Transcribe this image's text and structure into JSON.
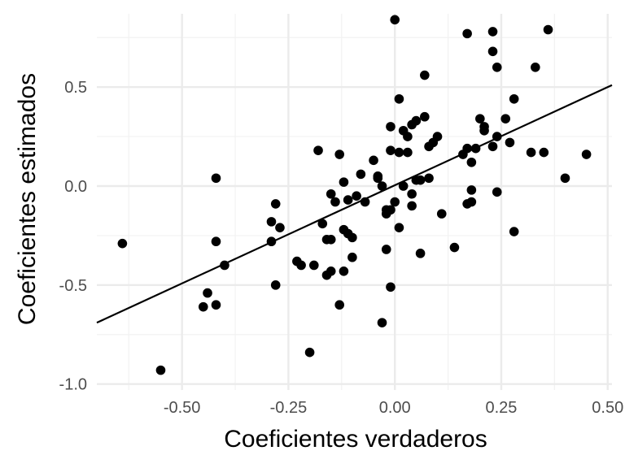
{
  "chart_data": {
    "type": "scatter",
    "title": "",
    "xlabel": "Coeficientes verdaderos",
    "ylabel": "Coeficientes estimados",
    "xlim": [
      -0.7,
      0.51
    ],
    "ylim": [
      -1.03,
      0.87
    ],
    "grid": true,
    "x_ticks": [
      -0.5,
      -0.25,
      0.0,
      0.25,
      0.5
    ],
    "x_tick_labels": [
      "-0.50",
      "-0.25",
      "0.00",
      "0.25",
      "0.50"
    ],
    "y_ticks": [
      -1.0,
      -0.5,
      0.0,
      0.5
    ],
    "y_tick_labels": [
      "-1.0",
      "-0.5",
      "0.0",
      "0.5"
    ],
    "fit_line": {
      "x": [
        -0.7,
        0.51
      ],
      "y": [
        -0.69,
        0.51
      ]
    },
    "points": {
      "x": [
        -0.64,
        -0.55,
        -0.45,
        -0.44,
        -0.42,
        -0.42,
        -0.42,
        -0.4,
        -0.29,
        -0.29,
        -0.28,
        -0.28,
        -0.27,
        -0.23,
        -0.22,
        -0.2,
        -0.19,
        -0.18,
        -0.17,
        -0.16,
        -0.16,
        -0.15,
        -0.15,
        -0.15,
        -0.14,
        -0.13,
        -0.13,
        -0.12,
        -0.12,
        -0.12,
        -0.11,
        -0.11,
        -0.1,
        -0.1,
        -0.09,
        -0.08,
        -0.07,
        -0.05,
        -0.04,
        -0.04,
        -0.03,
        -0.03,
        -0.02,
        -0.02,
        -0.02,
        -0.01,
        -0.01,
        -0.01,
        -0.01,
        0.0,
        0.0,
        0.01,
        0.01,
        0.01,
        0.02,
        0.02,
        0.03,
        0.03,
        0.04,
        0.04,
        0.04,
        0.05,
        0.05,
        0.06,
        0.06,
        0.07,
        0.07,
        0.08,
        0.08,
        0.09,
        0.1,
        0.11,
        0.14,
        0.16,
        0.17,
        0.17,
        0.17,
        0.18,
        0.18,
        0.18,
        0.19,
        0.2,
        0.21,
        0.21,
        0.23,
        0.23,
        0.23,
        0.24,
        0.24,
        0.24,
        0.26,
        0.27,
        0.28,
        0.28,
        0.32,
        0.33,
        0.35,
        0.36,
        0.4,
        0.45
      ],
      "y": [
        -0.29,
        -0.93,
        -0.61,
        -0.54,
        -0.6,
        -0.28,
        0.04,
        -0.4,
        -0.18,
        -0.28,
        -0.09,
        -0.5,
        -0.21,
        -0.38,
        -0.4,
        -0.84,
        -0.4,
        0.18,
        -0.19,
        -0.27,
        -0.45,
        -0.27,
        -0.43,
        -0.04,
        -0.08,
        -0.6,
        0.16,
        -0.43,
        -0.22,
        0.02,
        -0.07,
        -0.24,
        -0.36,
        -0.26,
        -0.05,
        0.06,
        -0.08,
        0.13,
        0.05,
        0.04,
        -0.69,
        0.0,
        -0.32,
        -0.12,
        -0.14,
        0.18,
        0.3,
        -0.51,
        -0.12,
        0.84,
        -0.08,
        0.17,
        -0.21,
        0.44,
        0.0,
        0.28,
        0.25,
        0.17,
        -0.1,
        -0.04,
        0.31,
        0.33,
        0.03,
        0.03,
        -0.34,
        0.35,
        0.56,
        0.2,
        0.04,
        0.22,
        0.25,
        -0.14,
        -0.31,
        0.16,
        0.77,
        0.19,
        -0.09,
        -0.08,
        0.12,
        -0.02,
        0.19,
        0.34,
        0.3,
        0.28,
        0.2,
        0.68,
        0.78,
        -0.03,
        0.25,
        0.6,
        0.34,
        0.22,
        -0.23,
        0.44,
        0.17,
        0.6,
        0.17,
        0.79,
        0.04,
        0.16
      ]
    }
  }
}
